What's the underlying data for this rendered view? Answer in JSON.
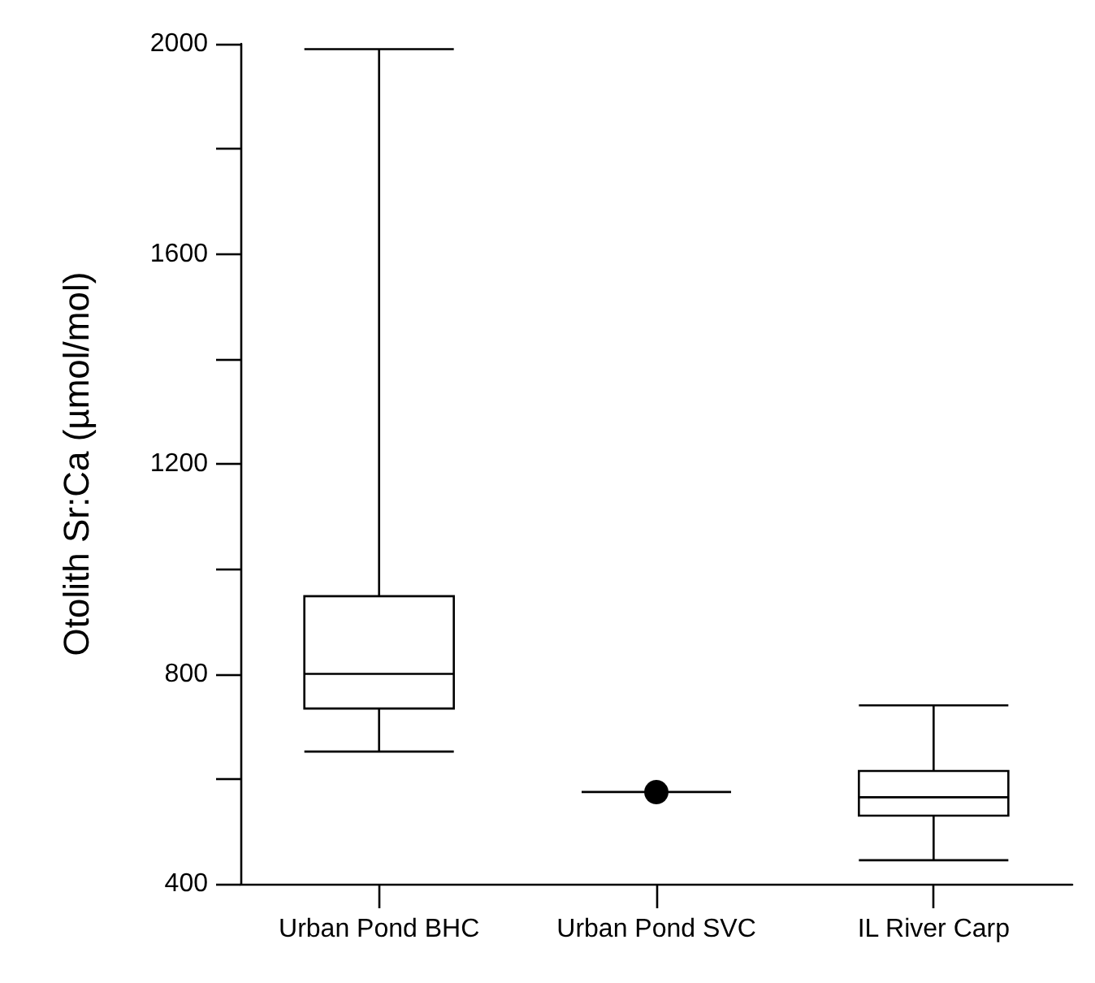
{
  "chart_data": {
    "type": "box",
    "ylabel": "Otolith Sr:Ca (µmol/mol)",
    "categories": [
      "Urban Pond BHC",
      "Urban Pond SVC",
      "IL River Carp"
    ],
    "boxes": [
      {
        "low": 652,
        "q1": 734,
        "median": 800,
        "q3": 948,
        "high": 1990
      },
      {
        "low": 575,
        "q1": 575,
        "median": 575,
        "q3": 575,
        "high": 575,
        "outliers": [
          575
        ]
      },
      {
        "low": 445,
        "q1": 530,
        "median": 565,
        "q3": 615,
        "high": 740
      }
    ],
    "color": "#000000",
    "ylim": [
      400,
      2000
    ],
    "yticks": [
      400,
      {
        "value": 600,
        "label": null
      },
      800,
      {
        "value": 1000,
        "label": null
      },
      1200,
      {
        "value": 1400,
        "label": null
      },
      1600,
      {
        "value": 1800,
        "label": null
      },
      2000
    ],
    "grid": false
  }
}
